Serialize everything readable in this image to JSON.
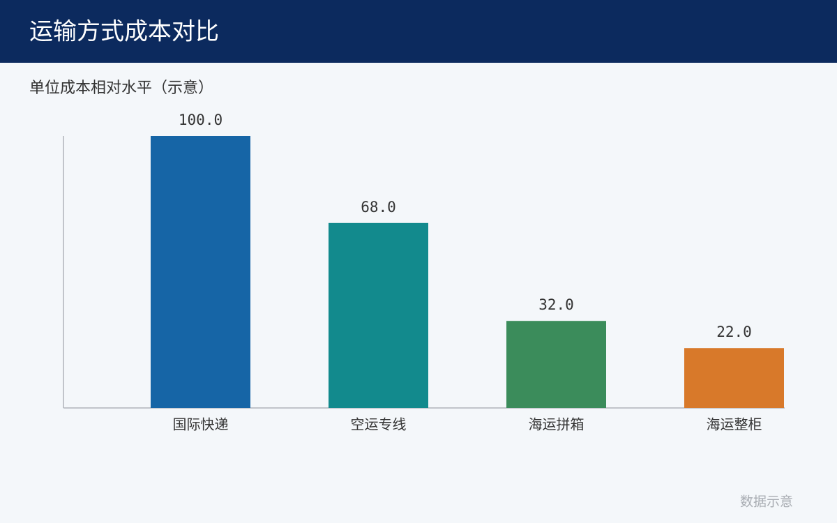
{
  "chart_data": {
    "type": "bar",
    "title": "运输方式成本对比",
    "subtitle": "单位成本相对水平（示意）",
    "categories": [
      "国际快递",
      "空运专线",
      "海运拼箱",
      "海运整柜"
    ],
    "values": [
      100,
      68,
      32,
      22
    ],
    "value_labels": [
      "100.0",
      "68.0",
      "32.0",
      "22.0"
    ],
    "colors": [
      "#1665a6",
      "#128a8d",
      "#3b8c5b",
      "#d8792a"
    ],
    "ylim": [
      0,
      100
    ],
    "note": "数据示意"
  }
}
